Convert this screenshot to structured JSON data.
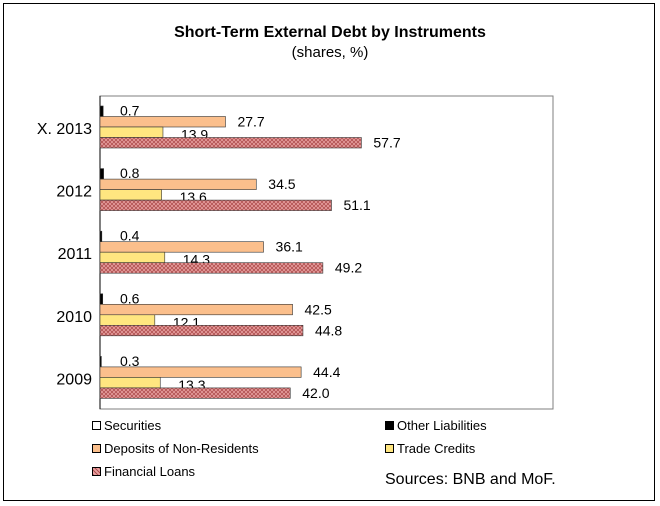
{
  "chart_data": {
    "type": "bar",
    "orientation": "horizontal",
    "title": "Short-Term External Debt by Instruments",
    "subtitle": "(shares, %)",
    "categories": [
      "X. 2013",
      "2012",
      "2011",
      "2010",
      "2009"
    ],
    "series": [
      {
        "name": "Securities",
        "color": "#ffffff",
        "values": [
          0,
          0,
          0,
          0,
          0
        ]
      },
      {
        "name": "Other Liabilities",
        "color": "#000000",
        "values": [
          0.7,
          0.8,
          0.4,
          0.6,
          0.3
        ]
      },
      {
        "name": "Deposits of Non-Residents",
        "color": "#fbbf8c",
        "values": [
          27.7,
          34.5,
          36.1,
          42.5,
          44.4
        ]
      },
      {
        "name": "Trade Credits",
        "color": "#ffe680",
        "values": [
          13.9,
          13.6,
          14.3,
          12.1,
          13.3
        ]
      },
      {
        "name": "Financial Loans",
        "color": "#cc8888",
        "values": [
          57.7,
          51.1,
          49.2,
          44.8,
          42.0
        ]
      }
    ],
    "data_labels": [
      [
        "0.7",
        "27.7",
        "13.9",
        "57.7"
      ],
      [
        "0.8",
        "34.5",
        "13.6",
        "51.1"
      ],
      [
        "0.4",
        "36.1",
        "14.3",
        "49.2"
      ],
      [
        "0.6",
        "42.5",
        "12.1",
        "44.8"
      ],
      [
        "0.3",
        "44.4",
        "13.3",
        "42.0"
      ]
    ],
    "xlim": [
      0,
      100
    ],
    "grid": false,
    "legend_position": "bottom"
  },
  "source_note": "Sources: BNB and MoF."
}
